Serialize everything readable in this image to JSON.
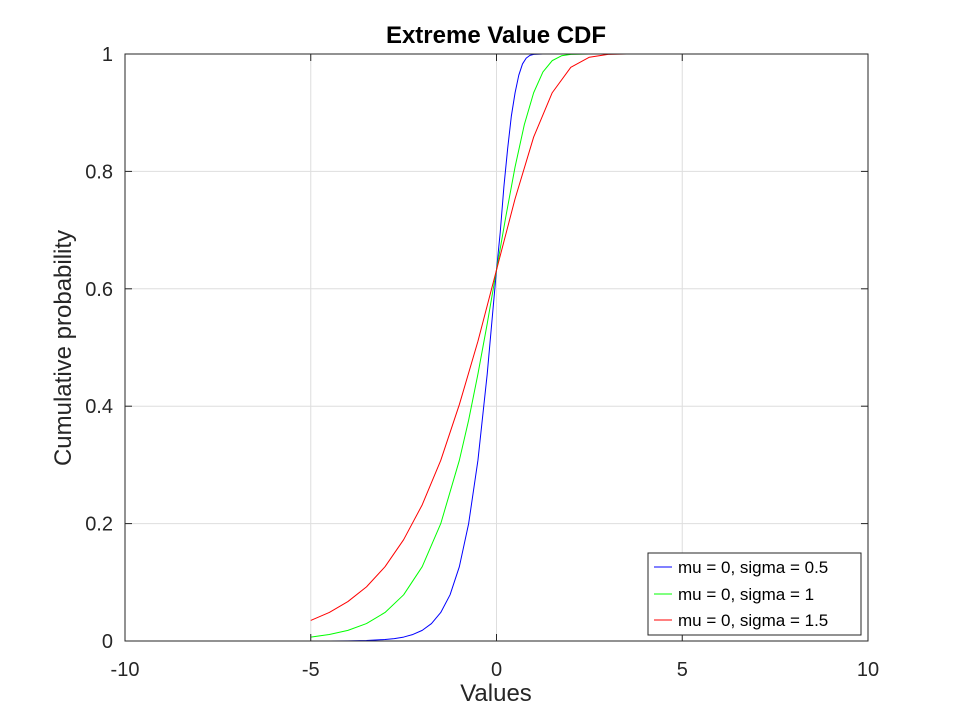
{
  "chart_data": {
    "type": "line",
    "title": "Extreme Value CDF",
    "xlabel": "Values",
    "ylabel": "Cumulative probability",
    "xlim": [
      -10,
      10
    ],
    "ylim": [
      0,
      1
    ],
    "xticks": [
      -10,
      -5,
      0,
      5,
      10
    ],
    "xtick_labels": [
      "-10",
      "-5",
      "0",
      "5",
      "10"
    ],
    "yticks": [
      0,
      0.2,
      0.4,
      0.6,
      0.8,
      1
    ],
    "ytick_labels": [
      "0",
      "0.2",
      "0.4",
      "0.6",
      "0.8",
      "1"
    ],
    "grid": true,
    "legend_position": "bottom-right",
    "series": [
      {
        "name": "mu = 0, sigma = 0.5",
        "color": "#0000ff",
        "x": [
          -5,
          -4.5,
          -4,
          -3.5,
          -3,
          -2.75,
          -2.5,
          -2.25,
          -2,
          -1.75,
          -1.5,
          -1.25,
          -1,
          -0.75,
          -0.5,
          -0.25,
          0,
          0.1,
          0.2,
          0.3,
          0.4,
          0.5,
          0.6,
          0.7,
          0.8,
          0.9,
          1,
          1.25,
          1.5,
          2,
          3,
          5,
          10
        ],
        "y": [
          0.0,
          0.0001,
          0.0003,
          0.0009,
          0.0025,
          0.0041,
          0.0067,
          0.0111,
          0.0181,
          0.0297,
          0.0486,
          0.0787,
          0.1266,
          0.2,
          0.3078,
          0.4548,
          0.6321,
          0.6959,
          0.7746,
          0.8387,
          0.8944,
          0.934,
          0.9639,
          0.9831,
          0.993,
          0.9977,
          0.9994,
          1.0,
          1.0,
          1.0,
          1.0,
          1.0,
          1.0
        ]
      },
      {
        "name": "mu = 0, sigma = 1",
        "color": "#00ff00",
        "x": [
          -5,
          -4.5,
          -4,
          -3.5,
          -3,
          -2.5,
          -2,
          -1.5,
          -1,
          -0.75,
          -0.5,
          -0.25,
          0,
          0.25,
          0.5,
          0.75,
          1,
          1.25,
          1.5,
          1.75,
          2,
          2.5,
          3,
          5,
          10
        ],
        "y": [
          0.0067,
          0.0111,
          0.0181,
          0.0297,
          0.0486,
          0.0787,
          0.1266,
          0.2,
          0.3078,
          0.3763,
          0.4548,
          0.5405,
          0.6321,
          0.7226,
          0.8077,
          0.8799,
          0.934,
          0.9695,
          0.9887,
          0.997,
          0.9994,
          1.0,
          1.0,
          1.0,
          1.0
        ]
      },
      {
        "name": "mu = 0, sigma = 1.5",
        "color": "#ff0000",
        "x": [
          -5,
          -4.5,
          -4,
          -3.5,
          -3,
          -2.5,
          -2,
          -1.5,
          -1,
          -0.5,
          0,
          0.5,
          1,
          1.5,
          2,
          2.5,
          3,
          3.5,
          5,
          10
        ],
        "y": [
          0.0351,
          0.0486,
          0.0672,
          0.0922,
          0.1266,
          0.1726,
          0.2319,
          0.3078,
          0.4028,
          0.5106,
          0.6321,
          0.7534,
          0.8585,
          0.934,
          0.9774,
          0.9945,
          0.9994,
          1.0,
          1.0,
          1.0
        ]
      }
    ]
  }
}
